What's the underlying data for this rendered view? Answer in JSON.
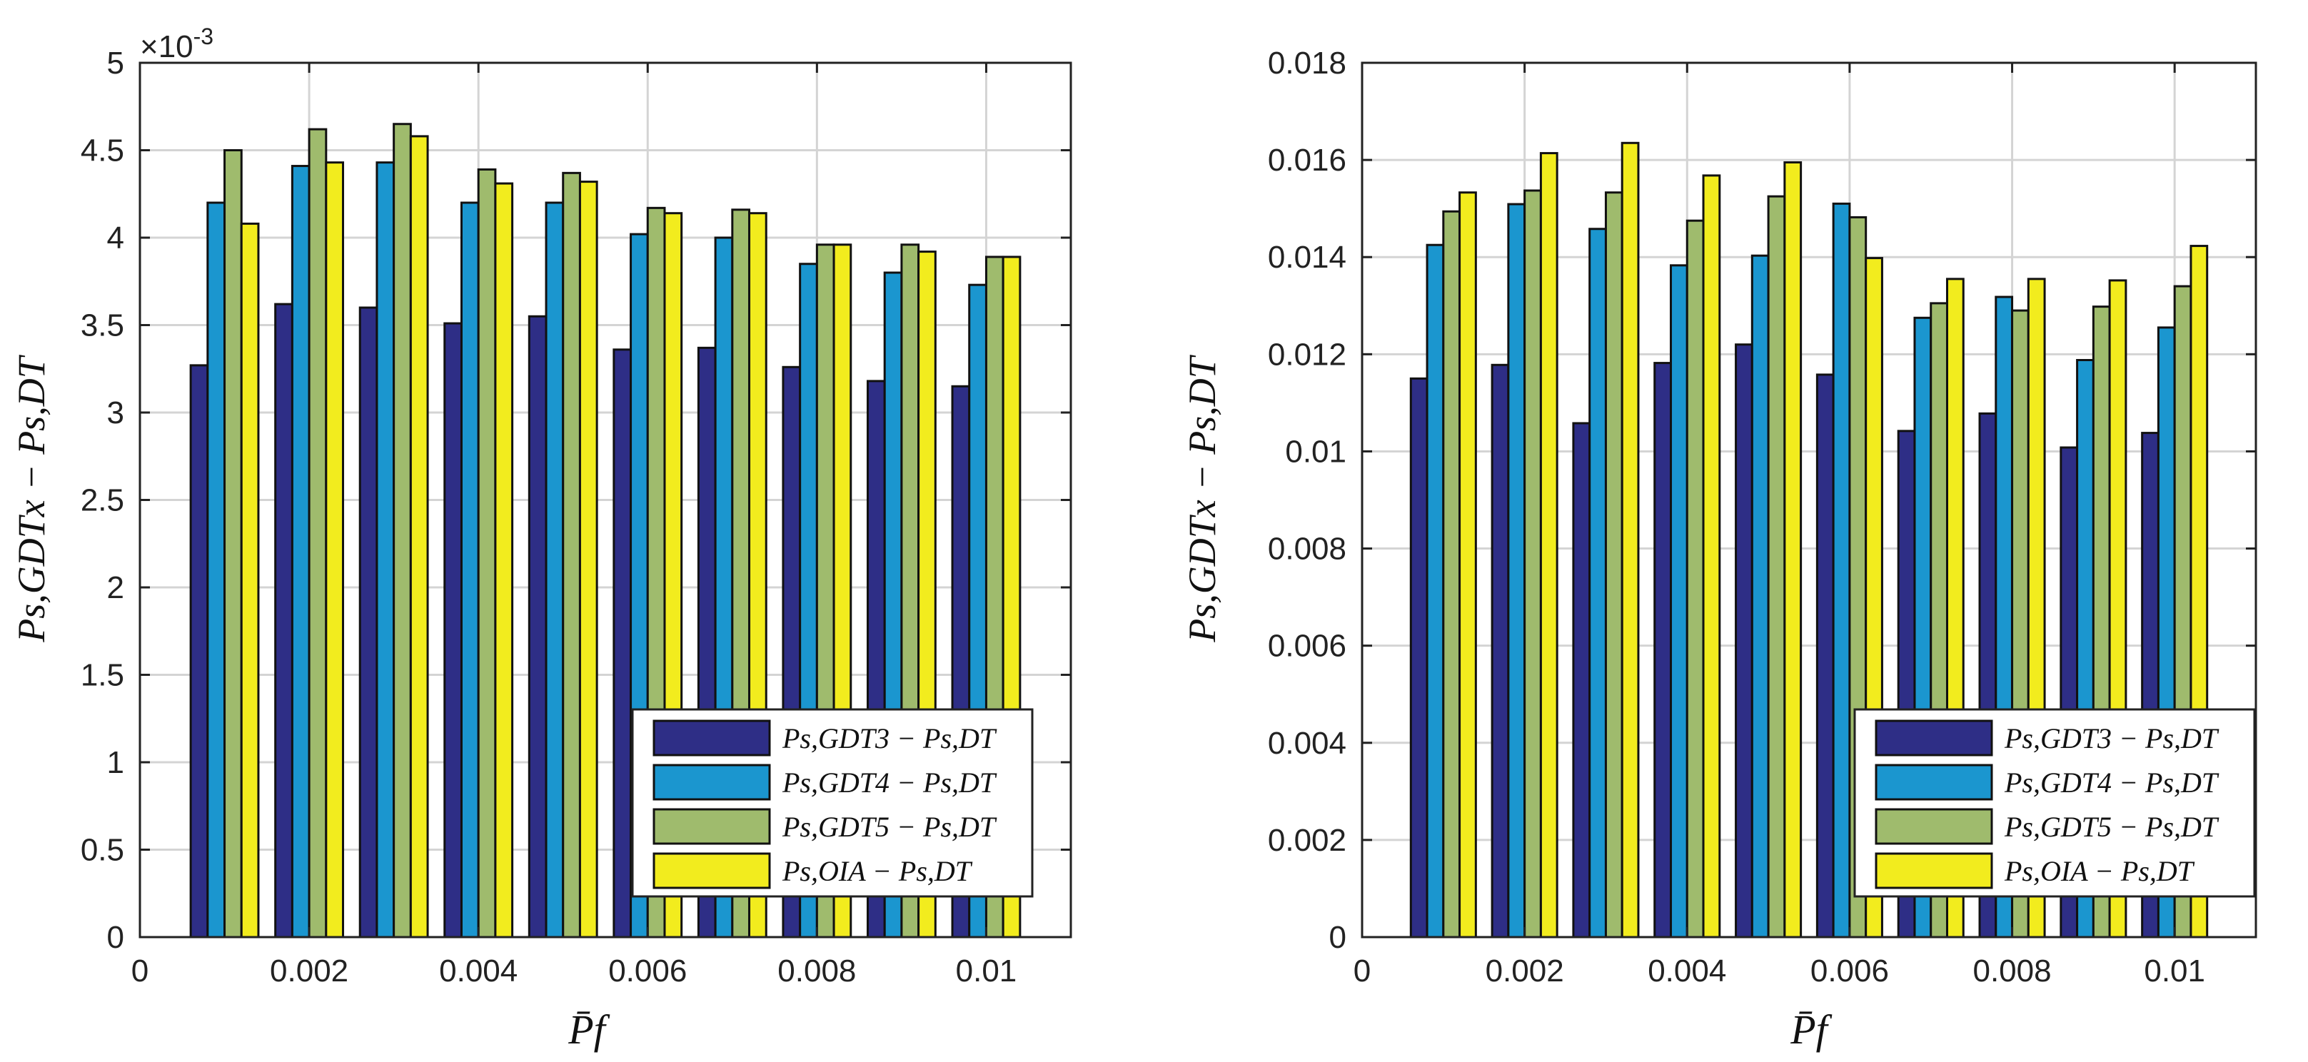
{
  "chart_data": [
    {
      "type": "bar",
      "x": [
        0.001,
        0.002,
        0.003,
        0.004,
        0.005,
        0.006,
        0.007,
        0.008,
        0.009,
        0.01
      ],
      "xlim": [
        0,
        0.011
      ],
      "xticks": [
        "0",
        "0.002",
        "0.004",
        "0.006",
        "0.008",
        "0.01"
      ],
      "ylim": [
        0,
        0.005
      ],
      "yticks": [
        "0",
        "0.5",
        "1",
        "1.5",
        "2",
        "2.5",
        "3",
        "3.5",
        "4",
        "4.5",
        "5"
      ],
      "y_multiplier": "×10",
      "y_multiplier_exp": "-3",
      "xlabel": "P̄f",
      "ylabel": "Ps,GDTx − Ps,DT",
      "grid": true,
      "legend_position": "bottom-right",
      "series": [
        {
          "name": "Ps,GDT3 − Ps,DT",
          "color": "#2e2e86",
          "values": [
            0.00327,
            0.00362,
            0.0036,
            0.00351,
            0.00355,
            0.00336,
            0.00337,
            0.00326,
            0.00318,
            0.00315
          ]
        },
        {
          "name": "Ps,GDT4 − Ps,DT",
          "color": "#1b96cf",
          "values": [
            0.0042,
            0.00441,
            0.00443,
            0.0042,
            0.0042,
            0.00402,
            0.004,
            0.00385,
            0.0038,
            0.00373
          ]
        },
        {
          "name": "Ps,GDT5 − Ps,DT",
          "color": "#9fbb6d",
          "values": [
            0.0045,
            0.00462,
            0.00465,
            0.00439,
            0.00437,
            0.00417,
            0.00416,
            0.00396,
            0.00396,
            0.00389
          ]
        },
        {
          "name": "Ps,OIA − Ps,DT",
          "color": "#f2ec1e",
          "values": [
            0.00408,
            0.00443,
            0.00458,
            0.00431,
            0.00432,
            0.00414,
            0.00414,
            0.00396,
            0.00392,
            0.00389
          ]
        }
      ]
    },
    {
      "type": "bar",
      "x": [
        0.001,
        0.002,
        0.003,
        0.004,
        0.005,
        0.006,
        0.007,
        0.008,
        0.009,
        0.01
      ],
      "xlim": [
        0,
        0.011
      ],
      "xticks": [
        "0",
        "0.002",
        "0.004",
        "0.006",
        "0.008",
        "0.01"
      ],
      "ylim": [
        0,
        0.018
      ],
      "yticks": [
        "0",
        "0.002",
        "0.004",
        "0.006",
        "0.008",
        "0.01",
        "0.012",
        "0.014",
        "0.016",
        "0.018"
      ],
      "xlabel": "P̄f",
      "ylabel": "Ps,GDTx − Ps,DT",
      "grid": true,
      "legend_position": "bottom-right",
      "series": [
        {
          "name": "Ps,GDT3 − Ps,DT",
          "color": "#2e2e86",
          "values": [
            0.0115,
            0.01178,
            0.01058,
            0.01182,
            0.0122,
            0.01158,
            0.01042,
            0.01078,
            0.01008,
            0.01038
          ]
        },
        {
          "name": "Ps,GDT4 − Ps,DT",
          "color": "#1b96cf",
          "values": [
            0.01425,
            0.01509,
            0.01458,
            0.01383,
            0.01403,
            0.0151,
            0.01275,
            0.01318,
            0.01188,
            0.01255
          ]
        },
        {
          "name": "Ps,GDT5 − Ps,DT",
          "color": "#9fbb6d",
          "values": [
            0.01494,
            0.01537,
            0.01533,
            0.01475,
            0.01525,
            0.01482,
            0.01305,
            0.0129,
            0.01298,
            0.0134
          ]
        },
        {
          "name": "Ps,OIA − Ps,DT",
          "color": "#f2ec1e",
          "values": [
            0.01533,
            0.01614,
            0.01635,
            0.01568,
            0.01595,
            0.01398,
            0.01355,
            0.01355,
            0.01352,
            0.01423
          ]
        }
      ]
    }
  ]
}
